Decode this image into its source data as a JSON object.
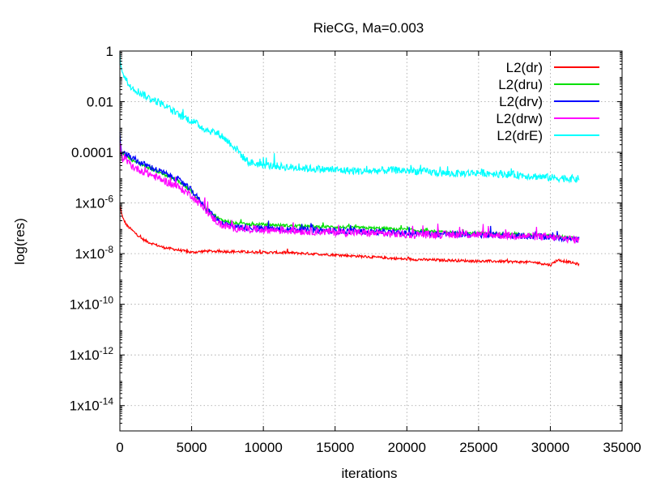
{
  "chart_data": {
    "type": "line",
    "title": "RieCG, Ma=0.003",
    "xlabel": "iterations",
    "ylabel": "log(res)",
    "xlim": [
      0,
      35000
    ],
    "ylim_log10": [
      -15,
      0
    ],
    "yscale": "log",
    "grid": true,
    "legend_position": "top-right",
    "x_ticks": [
      {
        "value": 0,
        "label": "0"
      },
      {
        "value": 5000,
        "label": "5000"
      },
      {
        "value": 10000,
        "label": "10000"
      },
      {
        "value": 15000,
        "label": "15000"
      },
      {
        "value": 20000,
        "label": "20000"
      },
      {
        "value": 25000,
        "label": "25000"
      },
      {
        "value": 30000,
        "label": "30000"
      },
      {
        "value": 35000,
        "label": "35000"
      }
    ],
    "y_ticks": [
      {
        "log10": 0,
        "base": "1",
        "exp": ""
      },
      {
        "log10": -2,
        "base": "0.01",
        "exp": ""
      },
      {
        "log10": -4,
        "base": "0.0001",
        "exp": ""
      },
      {
        "log10": -6,
        "base": "1x10",
        "exp": "-6"
      },
      {
        "log10": -8,
        "base": "1x10",
        "exp": "-8"
      },
      {
        "log10": -10,
        "base": "1x10",
        "exp": "-10"
      },
      {
        "log10": -12,
        "base": "1x10",
        "exp": "-12"
      },
      {
        "log10": -14,
        "base": "1x10",
        "exp": "-14"
      }
    ],
    "series": [
      {
        "name": "L2(dr)",
        "color": "#ff0000",
        "noise": 0.05,
        "x": [
          0,
          200,
          500,
          1000,
          1500,
          2000,
          3000,
          4000,
          5000,
          6000,
          8000,
          10000,
          12000,
          15000,
          16000,
          18000,
          20000,
          22000,
          24000,
          25000,
          26000,
          28000,
          29000,
          30000,
          30500,
          31000,
          32000
        ],
        "log10_y": [
          -6.1,
          -6.6,
          -6.9,
          -7.15,
          -7.4,
          -7.55,
          -7.75,
          -7.85,
          -7.95,
          -7.9,
          -7.92,
          -7.95,
          -7.97,
          -8.05,
          -8.08,
          -8.15,
          -8.22,
          -8.25,
          -8.28,
          -8.3,
          -8.3,
          -8.33,
          -8.35,
          -8.45,
          -8.25,
          -8.3,
          -8.42
        ]
      },
      {
        "name": "L2(dru)",
        "color": "#00e000",
        "noise": 0.06,
        "x": [
          0,
          100,
          500,
          1000,
          2000,
          3000,
          4000,
          5000,
          5500,
          6000,
          6500,
          7000,
          8000,
          9000,
          10000,
          12000,
          15000,
          18000,
          20000,
          22000,
          25000,
          28000,
          30000,
          32000
        ],
        "log10_y": [
          -3.4,
          -4.0,
          -4.15,
          -4.35,
          -4.6,
          -4.85,
          -5.1,
          -5.55,
          -5.9,
          -6.2,
          -6.45,
          -6.65,
          -6.8,
          -6.85,
          -6.85,
          -6.9,
          -6.95,
          -7.0,
          -7.05,
          -7.15,
          -7.2,
          -7.25,
          -7.3,
          -7.4
        ]
      },
      {
        "name": "L2(drv)",
        "color": "#0000ff",
        "noise": 0.12,
        "x": [
          0,
          100,
          500,
          1000,
          2000,
          3000,
          4000,
          5000,
          5500,
          6000,
          6500,
          7000,
          8000,
          10000,
          12000,
          15000,
          18000,
          20000,
          25000,
          28000,
          30000,
          32000
        ],
        "log10_y": [
          -3.3,
          -4.0,
          -4.1,
          -4.3,
          -4.55,
          -4.8,
          -5.05,
          -5.5,
          -5.85,
          -6.2,
          -6.5,
          -6.75,
          -6.95,
          -7.0,
          -7.05,
          -7.1,
          -7.15,
          -7.2,
          -7.25,
          -7.3,
          -7.35,
          -7.45
        ]
      },
      {
        "name": "L2(drw)",
        "color": "#ff00ff",
        "noise": 0.15,
        "x": [
          0,
          100,
          500,
          1000,
          2000,
          3000,
          4000,
          5000,
          5500,
          6000,
          6500,
          7000,
          8000,
          10000,
          12000,
          15000,
          18000,
          20000,
          25000,
          28000,
          30000,
          32000
        ],
        "log10_y": [
          -3.5,
          -4.2,
          -4.35,
          -4.6,
          -4.85,
          -5.1,
          -5.35,
          -5.7,
          -6.0,
          -6.3,
          -6.6,
          -6.85,
          -7.0,
          -7.05,
          -7.1,
          -7.15,
          -7.2,
          -7.25,
          -7.25,
          -7.3,
          -7.35,
          -7.45
        ]
      },
      {
        "name": "L2(drE)",
        "color": "#00ffff",
        "noise": 0.15,
        "x": [
          0,
          100,
          300,
          600,
          1000,
          2000,
          3000,
          4000,
          5000,
          6000,
          7000,
          7800,
          8200,
          8600,
          9000,
          10000,
          12000,
          15000,
          17000,
          19000,
          21000,
          23000,
          25000,
          28000,
          30000,
          32000
        ],
        "log10_y": [
          -0.2,
          -0.6,
          -1.0,
          -1.3,
          -1.5,
          -1.85,
          -2.1,
          -2.5,
          -2.75,
          -3.1,
          -3.3,
          -3.7,
          -3.9,
          -4.2,
          -4.4,
          -4.5,
          -4.6,
          -4.7,
          -4.75,
          -4.7,
          -4.75,
          -4.85,
          -4.8,
          -4.9,
          -5.0,
          -5.05
        ]
      }
    ]
  }
}
